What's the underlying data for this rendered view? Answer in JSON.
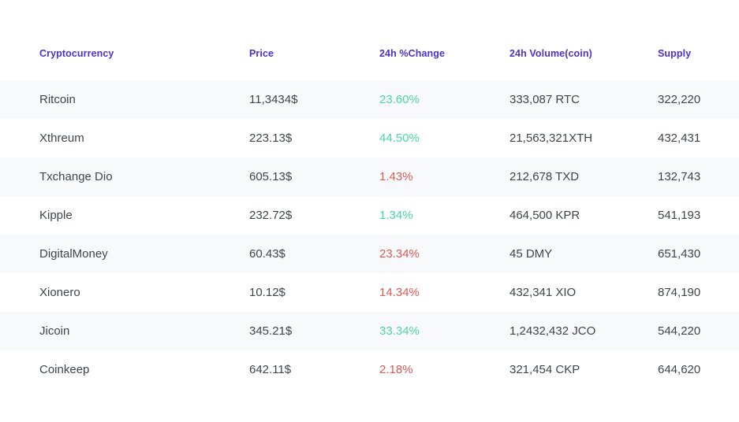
{
  "table": {
    "columns": [
      {
        "label": "Cryptocurrency"
      },
      {
        "label": "Price"
      },
      {
        "label": "24h %Change"
      },
      {
        "label": "24h Volume(coin)"
      },
      {
        "label": "Supply"
      }
    ],
    "rows": [
      {
        "name": "Ritcoin",
        "price": "11,3434$",
        "change": "23.60%",
        "trend": "up",
        "volume": "333,087 RTC",
        "supply": "322,220"
      },
      {
        "name": "Xthreum",
        "price": "223.13$",
        "change": "44.50%",
        "trend": "up",
        "volume": "21,563,321XTH",
        "supply": "432,431"
      },
      {
        "name": "Txchange Dio",
        "price": "605.13$",
        "change": "1.43%",
        "trend": "down",
        "volume": "212,678 TXD",
        "supply": "132,743"
      },
      {
        "name": "Kipple",
        "price": "232.72$",
        "change": "1.34%",
        "trend": "up",
        "volume": "464,500 KPR",
        "supply": "541,193"
      },
      {
        "name": "DigitalMoney",
        "price": "60.43$",
        "change": "23.34%",
        "trend": "down",
        "volume": "45 DMY",
        "supply": "651,430"
      },
      {
        "name": "Xionero",
        "price": "10.12$",
        "change": "14.34%",
        "trend": "down",
        "volume": "432,341 XIO",
        "supply": "874,190"
      },
      {
        "name": "Jicoin",
        "price": "345.21$",
        "change": "33.34%",
        "trend": "up",
        "volume": "1,2432,432 JCO",
        "supply": "544,220"
      },
      {
        "name": "Coinkeep",
        "price": "642.11$",
        "change": "2.18%",
        "trend": "down",
        "volume": "321,454 CKP",
        "supply": "644,620"
      }
    ],
    "colors": {
      "header_text": "#4C33CB",
      "positive": "#4BD6A3",
      "negative": "#DB5B55",
      "row_stripe": "#F8F9FB",
      "body_text": "#3F444D"
    }
  }
}
